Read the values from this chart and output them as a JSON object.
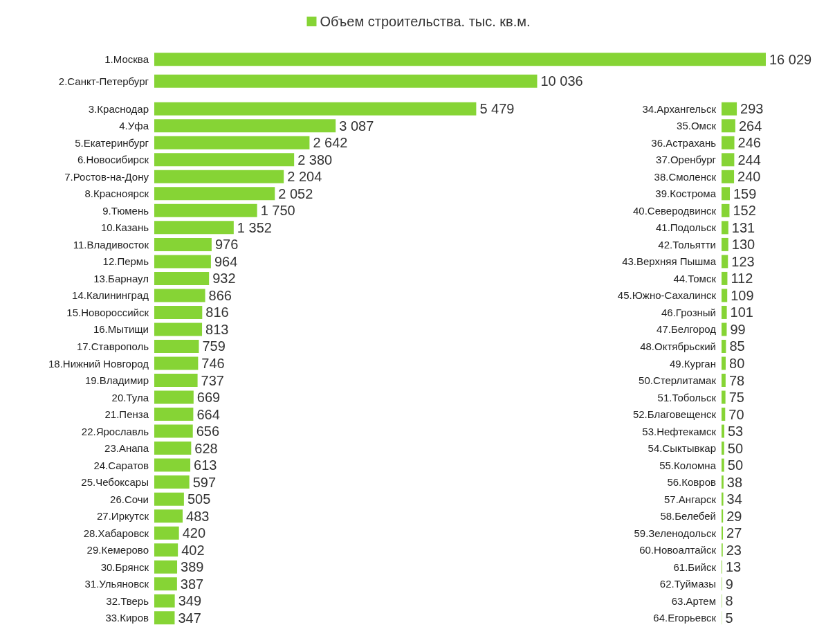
{
  "chart_data": [
    {
      "type": "bar",
      "orientation": "horizontal",
      "legend": "top",
      "data_labels": true,
      "categories": [
        "1.Москва",
        "2.Санкт-Петербург"
      ],
      "series": [
        {
          "name": "Объем строительства. тыс. кв.м.",
          "color": "#86d435",
          "values": [
            16029,
            10036
          ]
        }
      ]
    },
    {
      "type": "bar",
      "orientation": "horizontal",
      "data_labels": true,
      "categories": [
        "3.Краснодар",
        "4.Уфа",
        "5.Екатеринбург",
        "6.Новосибирск",
        "7.Ростов-на-Дону",
        "8.Красноярск",
        "9.Тюмень",
        "10.Казань",
        "11.Владивосток",
        "12.Пермь",
        "13.Барнаул",
        "14.Калининград",
        "15.Новороссийск",
        "16.Мытищи",
        "17.Ставрополь",
        "18.Нижний Новгород",
        "19.Владимир",
        "20.Тула",
        "21.Пенза",
        "22.Ярославль",
        "23.Анапа",
        "24.Саратов",
        "25.Чебоксары",
        "26.Сочи",
        "27.Иркутск",
        "28.Хабаровск",
        "29.Кемерово",
        "30.Брянск",
        "31.Ульяновск",
        "32.Тверь",
        "33.Киров"
      ],
      "series": [
        {
          "color": "#86d435",
          "values": [
            5479,
            3087,
            2642,
            2380,
            2204,
            2052,
            1750,
            1352,
            976,
            964,
            932,
            866,
            816,
            813,
            759,
            746,
            737,
            669,
            664,
            656,
            628,
            613,
            597,
            505,
            483,
            420,
            402,
            389,
            387,
            349,
            347
          ]
        }
      ]
    },
    {
      "type": "bar",
      "orientation": "horizontal",
      "data_labels": true,
      "categories": [
        "34.Архангельск",
        "35.Омск",
        "36.Астрахань",
        "37.Оренбург",
        "38.Смоленск",
        "39.Кострома",
        "40.Северодвинск",
        "41.Подольск",
        "42.Тольятти",
        "43.Верхняя Пышма",
        "44.Томск",
        "45.Южно-Сахалинск",
        "46.Грозный",
        "47.Белгород",
        "48.Октябрьский",
        "49.Курган",
        "50.Стерлитамак",
        "51.Тобольск",
        "52.Благовещенск",
        "53.Нефтекамск",
        "54.Сыктывкар",
        "55.Коломна",
        "56.Ковров",
        "57.Ангарск",
        "58.Белебей",
        "59.Зеленодольск",
        "60.Новоалтайск",
        "61.Бийск",
        "62.Туймазы",
        "63.Артем",
        "64.Егорьевск"
      ],
      "series": [
        {
          "color": "#86d435",
          "values": [
            293,
            264,
            246,
            244,
            240,
            159,
            152,
            131,
            130,
            123,
            112,
            109,
            101,
            99,
            85,
            80,
            78,
            75,
            70,
            53,
            50,
            50,
            38,
            34,
            29,
            27,
            23,
            13,
            9,
            8,
            5
          ]
        }
      ]
    }
  ]
}
